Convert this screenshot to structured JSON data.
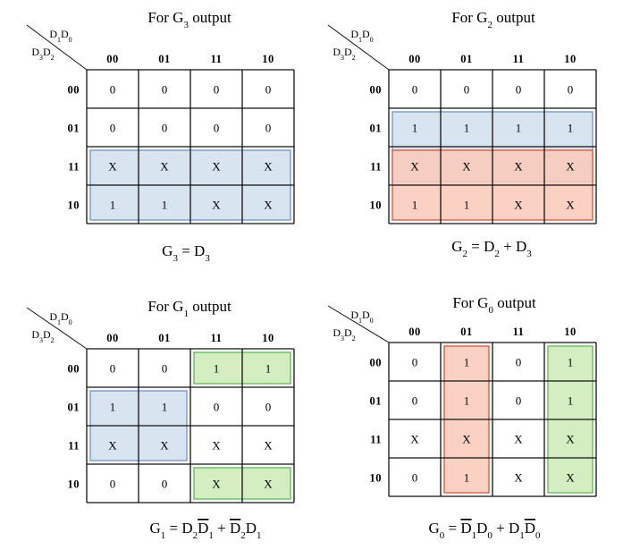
{
  "col_codes": [
    "00",
    "01",
    "11",
    "10"
  ],
  "row_codes": [
    "00",
    "01",
    "11",
    "10"
  ],
  "corner": {
    "top": [
      {
        "t": "D"
      },
      {
        "t": "1",
        "sub": true
      },
      {
        "t": "D"
      },
      {
        "t": "0",
        "sub": true
      }
    ],
    "left": [
      {
        "t": "D"
      },
      {
        "t": "3",
        "sub": true
      },
      {
        "t": "D"
      },
      {
        "t": "2",
        "sub": true
      }
    ]
  },
  "maps": [
    {
      "id": "g3",
      "title": [
        {
          "t": "For G"
        },
        {
          "t": "3",
          "sub": true
        },
        {
          "t": " output"
        }
      ],
      "cells": [
        [
          "0",
          "0",
          "0",
          "0"
        ],
        [
          "0",
          "0",
          "0",
          "0"
        ],
        [
          "X",
          "X",
          "X",
          "X"
        ],
        [
          "1",
          "1",
          "X",
          "X"
        ]
      ],
      "groups": [
        {
          "color": "blue",
          "row_start": 2,
          "row_end": 3,
          "col_start": 0,
          "col_end": 3
        }
      ],
      "equation": [
        {
          "t": "G"
        },
        {
          "t": "3",
          "sub": true
        },
        {
          "t": " = D"
        },
        {
          "t": "3",
          "sub": true
        }
      ]
    },
    {
      "id": "g2",
      "title": [
        {
          "t": "For G"
        },
        {
          "t": "2",
          "sub": true
        },
        {
          "t": " output"
        }
      ],
      "cells": [
        [
          "0",
          "0",
          "0",
          "0"
        ],
        [
          "1",
          "1",
          "1",
          "1"
        ],
        [
          "X",
          "X",
          "X",
          "X"
        ],
        [
          "1",
          "1",
          "X",
          "X"
        ]
      ],
      "groups": [
        {
          "color": "blue",
          "row_start": 1,
          "row_end": 2,
          "col_start": 0,
          "col_end": 3
        },
        {
          "color": "red",
          "row_start": 2,
          "row_end": 3,
          "col_start": 0,
          "col_end": 3
        }
      ],
      "equation": [
        {
          "t": "G"
        },
        {
          "t": "2",
          "sub": true
        },
        {
          "t": " = D"
        },
        {
          "t": "2",
          "sub": true
        },
        {
          "t": " + D"
        },
        {
          "t": "3",
          "sub": true
        }
      ]
    },
    {
      "id": "g1",
      "title": [
        {
          "t": "For G"
        },
        {
          "t": "1",
          "sub": true
        },
        {
          "t": " output"
        }
      ],
      "cells": [
        [
          "0",
          "0",
          "1",
          "1"
        ],
        [
          "1",
          "1",
          "0",
          "0"
        ],
        [
          "X",
          "X",
          "X",
          "X"
        ],
        [
          "0",
          "0",
          "X",
          "X"
        ]
      ],
      "groups": [
        {
          "color": "green",
          "row_start": 0,
          "row_end": 0,
          "col_start": 2,
          "col_end": 3
        },
        {
          "color": "green",
          "row_start": 3,
          "row_end": 3,
          "col_start": 2,
          "col_end": 3
        },
        {
          "color": "blue",
          "row_start": 1,
          "row_end": 2,
          "col_start": 0,
          "col_end": 1
        }
      ],
      "equation": [
        {
          "t": "G"
        },
        {
          "t": "1",
          "sub": true
        },
        {
          "t": " = D"
        },
        {
          "t": "2",
          "sub": true
        },
        {
          "t": "D",
          "bar": true
        },
        {
          "t": "1",
          "sub": true
        },
        {
          "t": " + "
        },
        {
          "t": "D",
          "bar": true
        },
        {
          "t": "2",
          "sub": true
        },
        {
          "t": "D"
        },
        {
          "t": "1",
          "sub": true
        }
      ]
    },
    {
      "id": "g0",
      "title": [
        {
          "t": "For G"
        },
        {
          "t": "0",
          "sub": true
        },
        {
          "t": " output"
        }
      ],
      "cells": [
        [
          "0",
          "1",
          "0",
          "1"
        ],
        [
          "0",
          "1",
          "0",
          "1"
        ],
        [
          "X",
          "X",
          "X",
          "X"
        ],
        [
          "0",
          "1",
          "X",
          "X"
        ]
      ],
      "groups": [
        {
          "color": "red",
          "row_start": 0,
          "row_end": 3,
          "col_start": 1,
          "col_end": 1
        },
        {
          "color": "green",
          "row_start": 0,
          "row_end": 3,
          "col_start": 3,
          "col_end": 3
        }
      ],
      "equation": [
        {
          "t": "G"
        },
        {
          "t": "0",
          "sub": true
        },
        {
          "t": " = "
        },
        {
          "t": "D",
          "bar": true
        },
        {
          "t": "1",
          "sub": true
        },
        {
          "t": "D"
        },
        {
          "t": "0",
          "sub": true
        },
        {
          "t": " + D"
        },
        {
          "t": "1",
          "sub": true
        },
        {
          "t": "D",
          "bar": true
        },
        {
          "t": "0",
          "sub": true
        }
      ]
    }
  ],
  "colors": {
    "blue": {
      "fill": "#d9e4f1",
      "stroke": "#6f93c4"
    },
    "red": {
      "fill": "#f9c9b9",
      "stroke": "#d7553a"
    },
    "green": {
      "fill": "#d4eec1",
      "stroke": "#5eb956"
    }
  }
}
